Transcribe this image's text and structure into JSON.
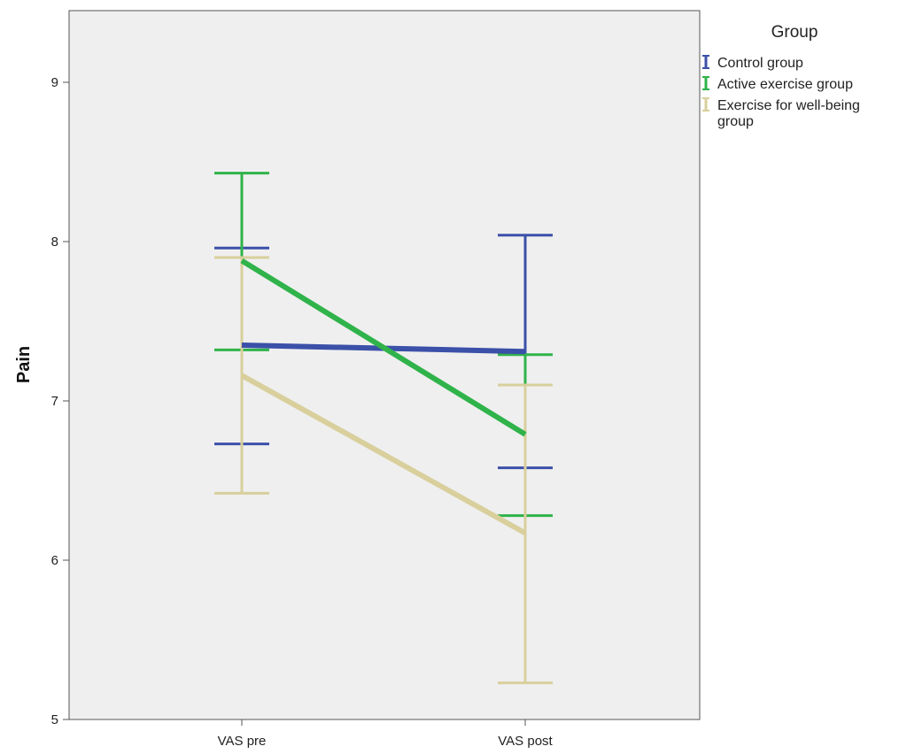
{
  "chart_data": {
    "type": "line",
    "ylabel": "Pain",
    "xlabel": "",
    "categories": [
      "VAS pre",
      "VAS post"
    ],
    "ylim": [
      5,
      9.45
    ],
    "yticks": [
      5,
      6,
      7,
      8,
      9
    ],
    "grid": false,
    "legend": {
      "title": "Group",
      "placement": "right",
      "entries": [
        "Control group",
        "Active exercise group",
        "Exercise for well-being group"
      ]
    },
    "series": [
      {
        "name": "Control group",
        "color": "#3b50a8",
        "values": [
          7.35,
          7.31
        ],
        "error_low": [
          6.73,
          6.58
        ],
        "error_high": [
          7.96,
          8.04
        ]
      },
      {
        "name": "Active exercise group",
        "color": "#2fb34a",
        "values": [
          7.88,
          6.79
        ],
        "error_low": [
          7.32,
          6.28
        ],
        "error_high": [
          8.43,
          7.29
        ]
      },
      {
        "name": "Exercise for well-being group",
        "color": "#d8cf9c",
        "values": [
          7.16,
          6.17
        ],
        "error_low": [
          6.42,
          5.23
        ],
        "error_high": [
          7.9,
          7.1
        ]
      }
    ]
  }
}
